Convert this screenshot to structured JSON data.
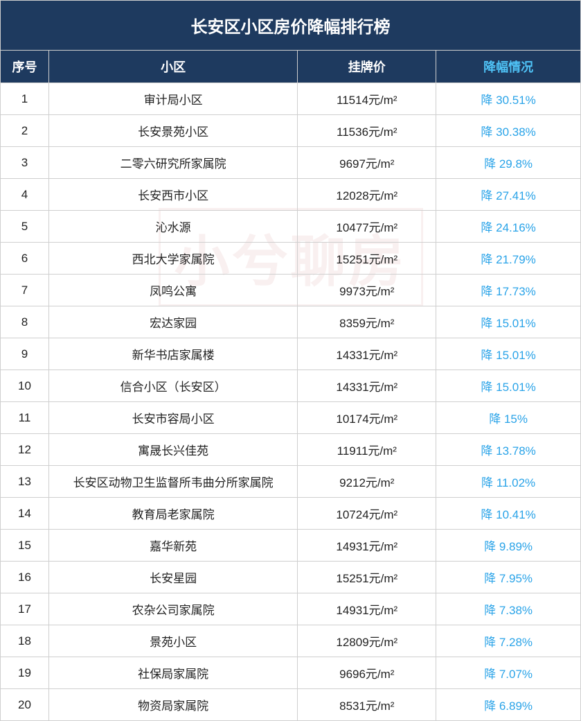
{
  "title": "长安区小区房价降幅排行榜",
  "watermark": "小兮聊房",
  "headers": {
    "serial": "序号",
    "name": "小区",
    "price": "挂牌价",
    "drop": "降幅情况"
  },
  "colors": {
    "header_bg": "#1e3a5f",
    "header_text": "#ffffff",
    "highlight_head": "#4fc3f7",
    "drop_text": "#29a3e8",
    "border": "#cfcfcf",
    "body_text": "#222222",
    "bg": "#ffffff"
  },
  "font_sizes": {
    "title": 24,
    "header": 18,
    "body": 17
  },
  "column_widths": {
    "serial": 70,
    "name": 360,
    "price": 200,
    "drop": 209
  },
  "price_unit": "元/m²",
  "drop_prefix": "降 ",
  "rows": [
    {
      "serial": "1",
      "name": "审计局小区",
      "price": "11514元/m²",
      "drop": "降 30.51%"
    },
    {
      "serial": "2",
      "name": "长安景苑小区",
      "price": "11536元/m²",
      "drop": "降 30.38%"
    },
    {
      "serial": "3",
      "name": "二零六研究所家属院",
      "price": "9697元/m²",
      "drop": "降 29.8%"
    },
    {
      "serial": "4",
      "name": "长安西市小区",
      "price": "12028元/m²",
      "drop": "降 27.41%"
    },
    {
      "serial": "5",
      "name": "沁水源",
      "price": "10477元/m²",
      "drop": "降 24.16%"
    },
    {
      "serial": "6",
      "name": "西北大学家属院",
      "price": "15251元/m²",
      "drop": "降 21.79%"
    },
    {
      "serial": "7",
      "name": "凤鸣公寓",
      "price": "9973元/m²",
      "drop": "降 17.73%"
    },
    {
      "serial": "8",
      "name": "宏达家园",
      "price": "8359元/m²",
      "drop": "降 15.01%"
    },
    {
      "serial": "9",
      "name": "新华书店家属楼",
      "price": "14331元/m²",
      "drop": "降 15.01%"
    },
    {
      "serial": "10",
      "name": "信合小区（长安区）",
      "price": "14331元/m²",
      "drop": "降 15.01%"
    },
    {
      "serial": "11",
      "name": "长安市容局小区",
      "price": "10174元/m²",
      "drop": "降 15%"
    },
    {
      "serial": "12",
      "name": "寓晟长兴佳苑",
      "price": "11911元/m²",
      "drop": "降 13.78%"
    },
    {
      "serial": "13",
      "name": "长安区动物卫生监督所韦曲分所家属院",
      "price": "9212元/m²",
      "drop": "降 11.02%"
    },
    {
      "serial": "14",
      "name": "教育局老家属院",
      "price": "10724元/m²",
      "drop": "降 10.41%"
    },
    {
      "serial": "15",
      "name": "嘉华新苑",
      "price": "14931元/m²",
      "drop": "降 9.89%"
    },
    {
      "serial": "16",
      "name": "长安星园",
      "price": "15251元/m²",
      "drop": "降 7.95%"
    },
    {
      "serial": "17",
      "name": "农杂公司家属院",
      "price": "14931元/m²",
      "drop": "降 7.38%"
    },
    {
      "serial": "18",
      "name": "景苑小区",
      "price": "12809元/m²",
      "drop": "降 7.28%"
    },
    {
      "serial": "19",
      "name": "社保局家属院",
      "price": "9696元/m²",
      "drop": "降 7.07%"
    },
    {
      "serial": "20",
      "name": "物资局家属院",
      "price": "8531元/m²",
      "drop": "降 6.89%"
    }
  ]
}
